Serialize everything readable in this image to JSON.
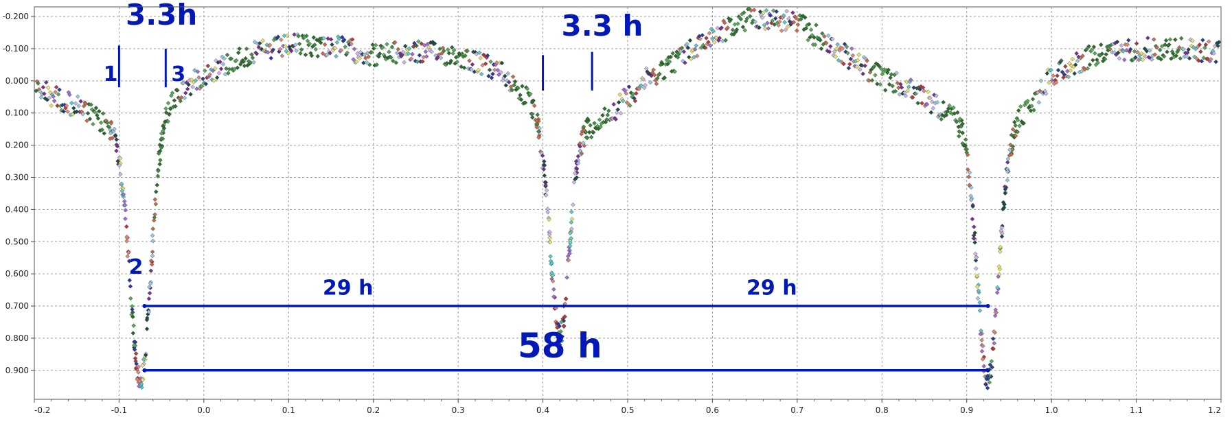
{
  "chart_data": {
    "type": "scatter",
    "title": "",
    "xlabel": "",
    "ylabel": "",
    "xlim": [
      -0.2,
      1.2
    ],
    "ylim": [
      -0.23,
      0.99
    ],
    "y_inverted": true,
    "grid": true,
    "legend": "none",
    "x_ticks": [
      "-0.2",
      "-0.1",
      "0.0",
      "0.1",
      "0.2",
      "0.3",
      "0.4",
      "0.5",
      "0.6",
      "0.7",
      "0.8",
      "0.9",
      "1.0",
      "1.1",
      "1.2"
    ],
    "y_ticks": [
      "-0.200",
      "-0.100",
      "0.000",
      "0.100",
      "0.200",
      "0.300",
      "0.400",
      "0.500",
      "0.600",
      "0.700",
      "0.800",
      "0.900"
    ],
    "marker_colors": [
      "#2e6b2e",
      "#5aa85a",
      "#2a3a9c",
      "#b33a3a",
      "#d9897a",
      "#9a6fd0",
      "#5bc8c8",
      "#e8e06a",
      "#c9b8ea",
      "#1f4a4a",
      "#7c2e8c",
      "#9ac7e0",
      "#c46b4f",
      "#3d8b3d"
    ],
    "light_curve": {
      "baseline": [
        [
          -0.2,
          0.02
        ],
        [
          -0.15,
          0.08
        ],
        [
          -0.12,
          0.13
        ],
        [
          -0.09,
          0.16
        ],
        [
          -0.06,
          0.12
        ],
        [
          -0.03,
          0.04
        ],
        [
          0.0,
          -0.02
        ],
        [
          0.05,
          -0.08
        ],
        [
          0.1,
          -0.11
        ],
        [
          0.15,
          -0.11
        ],
        [
          0.2,
          -0.08
        ],
        [
          0.25,
          -0.09
        ],
        [
          0.3,
          -0.08
        ],
        [
          0.35,
          -0.03
        ],
        [
          0.38,
          0.05
        ],
        [
          0.4,
          0.12
        ],
        [
          0.45,
          0.15
        ],
        [
          0.48,
          0.1
        ],
        [
          0.52,
          0.0
        ],
        [
          0.6,
          -0.14
        ],
        [
          0.65,
          -0.2
        ],
        [
          0.7,
          -0.18
        ],
        [
          0.75,
          -0.09
        ],
        [
          0.8,
          -0.01
        ],
        [
          0.85,
          0.05
        ],
        [
          0.9,
          0.14
        ],
        [
          0.92,
          0.2
        ],
        [
          0.95,
          0.15
        ],
        [
          0.98,
          0.06
        ],
        [
          1.0,
          -0.02
        ],
        [
          1.05,
          -0.08
        ],
        [
          1.1,
          -0.1
        ],
        [
          1.15,
          -0.1
        ],
        [
          1.2,
          -0.09
        ]
      ],
      "eclipses": [
        {
          "center": -0.075,
          "depth": 0.93,
          "width": 0.012
        },
        {
          "center": 0.42,
          "depth": 0.79,
          "width": 0.011
        },
        {
          "center": 0.925,
          "depth": 0.93,
          "width": 0.012
        }
      ],
      "scatter_spread": 0.035
    },
    "annotations": [
      {
        "text": "3.3h",
        "x": -0.05,
        "y": -0.175,
        "size": "large"
      },
      {
        "text": "3.3 h",
        "x": 0.47,
        "y": -0.14,
        "size": "large"
      },
      {
        "text": "1",
        "x": -0.11,
        "y": 0.0,
        "size": "medium"
      },
      {
        "text": "3",
        "x": -0.03,
        "y": 0.0,
        "size": "medium"
      },
      {
        "text": "2",
        "x": -0.08,
        "y": 0.6,
        "size": "medium"
      },
      {
        "text": "29 h",
        "x": 0.17,
        "y": 0.665,
        "size": "medium"
      },
      {
        "text": "29 h",
        "x": 0.67,
        "y": 0.665,
        "size": "medium"
      },
      {
        "text": "58 h",
        "x": 0.42,
        "y": 0.86,
        "size": "xlarge"
      }
    ],
    "markers": [
      {
        "x": -0.1,
        "y1": -0.11,
        "y2": 0.02
      },
      {
        "x": -0.045,
        "y1": -0.1,
        "y2": 0.02
      },
      {
        "x": 0.4,
        "y1": -0.08,
        "y2": 0.03
      },
      {
        "x": 0.458,
        "y1": -0.09,
        "y2": 0.03
      }
    ],
    "spans": [
      {
        "x1": -0.07,
        "x2": 0.925,
        "y": 0.7
      },
      {
        "x1": -0.07,
        "x2": 0.925,
        "y": 0.9
      }
    ]
  }
}
